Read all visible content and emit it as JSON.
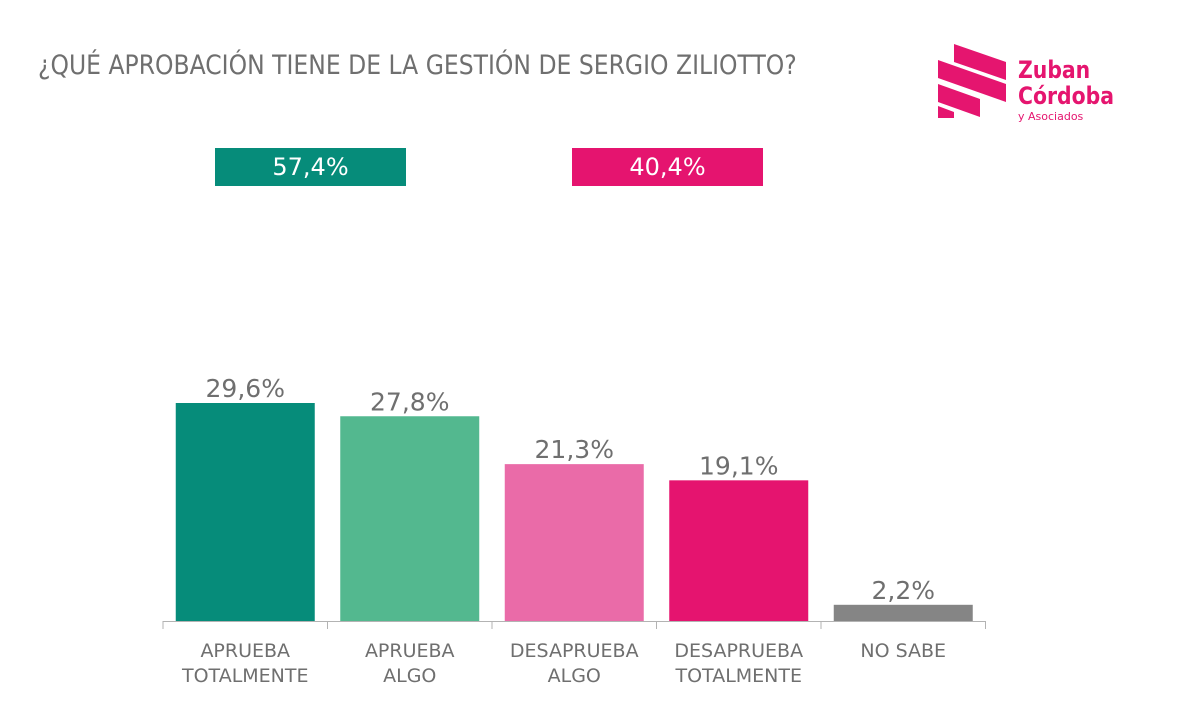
{
  "header": {
    "title": "¿QUÉ APROBACIÓN TIENE DE LA GESTIÓN DE SERGIO ZILIOTTO?"
  },
  "logo": {
    "line1": "Zuban",
    "line2": "Córdoba",
    "line3": "y Asociados",
    "color": "#e5156f"
  },
  "summary": {
    "approve": {
      "label": "57,4%",
      "color": "#068c7a"
    },
    "disapprove": {
      "label": "40,4%",
      "color": "#e5146f"
    }
  },
  "chart_data": {
    "type": "bar",
    "title": "¿QUÉ APROBACIÓN TIENE DE LA GESTIÓN DE SERGIO ZILIOTTO?",
    "categories": [
      [
        "APRUEBA",
        "TOTALMENTE"
      ],
      [
        "APRUEBA",
        "ALGO"
      ],
      [
        "DESAPRUEBA",
        "ALGO"
      ],
      [
        "DESAPRUEBA",
        "TOTALMENTE"
      ],
      [
        "NO SABE"
      ]
    ],
    "values": [
      29.6,
      27.8,
      21.3,
      19.1,
      2.2
    ],
    "value_labels": [
      "29,6%",
      "27,8%",
      "21,3%",
      "19,1%",
      "2,2%"
    ],
    "colors": [
      "#068c7a",
      "#53b88f",
      "#ea6ba8",
      "#e5146f",
      "#858585"
    ],
    "ylim": [
      0,
      33
    ],
    "xlabel": "",
    "ylabel": "",
    "grid": false,
    "legend": "none"
  }
}
